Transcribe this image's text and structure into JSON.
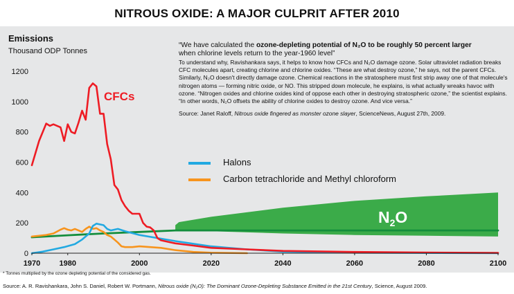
{
  "title": "NITROUS OXIDE: A MAJOR CULPRIT AFTER 2010",
  "y_title": "Emissions",
  "y_unit": "Thousand ODP Tonnes",
  "quote": {
    "head_a": "“We have calculated the ",
    "head_b": "ozone-depleting potential of N₂O to be roughly 50 percent larger",
    "head_c": "when chlorine levels return to the year-1960 level”",
    "body": "To understand why, Ravishankara says, it helps to know how CFCs and N₂O damage ozone. Solar ultraviolet radiation breaks CFC molecules apart, creating chlorine and chlorine oxides. “These are what destroy ozone,” he says, not the parent CFCs. Similarly, N₂O doesn't directly damage ozone. Chemical reactions in the stratosphere must first strip away one of that molecule's nitrogen atoms — forming nitric oxide, or NO. This stripped down molecule, he explains, is what actually wreaks havoc with ozone. “Nitrogen oxides and chlorine oxides kind of oppose each other in destroying stratospheric ozone,” the scientist explains. “In other words, N₂O offsets the ability of chlorine oxides to destroy ozone. And vice versa.”",
    "src_a": "Source: Janet Raloff, ",
    "src_b": "Nitrous oxide fingered as monster ozone slayer",
    "src_c": ", ScienceNews, August 27th, 2009."
  },
  "footnote": "* Tonnes multiplied by the ozone depleting potential of the considered gas.",
  "source": {
    "a": "Source: A. R. Ravishankara, John S. Daniel, Robert W. Portmann, ",
    "b": "Nitrous oxide (N₂O): The Dominant Ozone-Depleting Substance Emitted in the 21st Century",
    "c": ", Science, August 2009."
  },
  "colors": {
    "panel": "#e6e7e8",
    "cfc": "#ee1c24",
    "halons": "#22a9e1",
    "ctc": "#f7941d",
    "n2o": "#3bab49",
    "n2o_line": "#138d3c"
  },
  "chart_data": {
    "type": "line",
    "title": "NITROUS OXIDE: A MAJOR CULPRIT AFTER 2010",
    "ylabel": "Emissions",
    "yunit": "Thousand ODP Tonnes",
    "xlim": [
      1970,
      2100
    ],
    "ylim": [
      0,
      1200
    ],
    "xticks": [
      1970,
      1980,
      2000,
      2020,
      2040,
      2060,
      2080,
      2100
    ],
    "yticks": [
      0,
      200,
      400,
      600,
      800,
      1000,
      1200
    ],
    "grid": false,
    "series": [
      {
        "name": "CFCs",
        "color": "#ee1c24",
        "x": [
          1970,
          1972,
          1974,
          1975,
          1976,
          1978,
          1979,
          1980,
          1981,
          1982,
          1983,
          1984,
          1985,
          1986,
          1987,
          1988,
          1989,
          1990,
          1991,
          1992,
          1993,
          1994,
          1995,
          1996,
          1997,
          1998,
          1999,
          2000,
          2001,
          2002,
          2003,
          2004,
          2005,
          2006,
          2008,
          2010,
          2015,
          2020,
          2030,
          2040,
          2060,
          2080,
          2100
        ],
        "y": [
          580,
          740,
          855,
          840,
          850,
          830,
          740,
          850,
          800,
          790,
          860,
          940,
          880,
          1090,
          1120,
          1100,
          920,
          920,
          720,
          620,
          450,
          420,
          350,
          310,
          280,
          260,
          260,
          260,
          200,
          175,
          170,
          150,
          100,
          85,
          75,
          65,
          50,
          35,
          25,
          15,
          8,
          4,
          2
        ]
      },
      {
        "name": "Halons",
        "x": [
          1970,
          1973,
          1976,
          1979,
          1982,
          1984,
          1986,
          1987,
          1988,
          1989,
          1990,
          1991,
          1992,
          1994,
          1996,
          2000,
          2005,
          2010,
          2020,
          2030,
          2040,
          2060,
          2100
        ],
        "y": [
          0,
          10,
          25,
          40,
          60,
          90,
          130,
          180,
          195,
          190,
          185,
          160,
          150,
          160,
          145,
          120,
          100,
          80,
          45,
          25,
          10,
          3,
          0
        ]
      },
      {
        "name": "Carbon tetrachloride and Methyl chloroform",
        "x": [
          1970,
          1972,
          1974,
          1976,
          1978,
          1979,
          1980,
          1981,
          1982,
          1983,
          1984,
          1985,
          1986,
          1987,
          1988,
          1989,
          1990,
          1991,
          1992,
          1993,
          1994,
          1995,
          1996,
          1998,
          2000,
          2003,
          2006,
          2010,
          2015,
          2020,
          2030
        ],
        "y": [
          110,
          115,
          120,
          130,
          155,
          165,
          155,
          150,
          160,
          150,
          140,
          160,
          175,
          160,
          165,
          150,
          140,
          120,
          110,
          90,
          70,
          45,
          40,
          40,
          45,
          40,
          35,
          20,
          8,
          3,
          0
        ]
      },
      {
        "name": "N₂O",
        "color": "#3bab49",
        "x": [
          1970,
          1980,
          1990,
          2000,
          2010,
          2020,
          2040,
          2060,
          2080,
          2100
        ],
        "y": [
          105,
          118,
          130,
          140,
          150,
          150,
          150,
          150,
          150,
          150
        ],
        "band_upper": {
          "x": [
            2010,
            2011,
            2020,
            2040,
            2060,
            2080,
            2100
          ],
          "y": [
            185,
            205,
            240,
            300,
            345,
            375,
            400
          ]
        },
        "band_lower": {
          "x": [
            2010,
            2020,
            2040,
            2060,
            2080,
            2100
          ],
          "y": [
            150,
            145,
            130,
            120,
            115,
            110
          ]
        }
      }
    ]
  }
}
